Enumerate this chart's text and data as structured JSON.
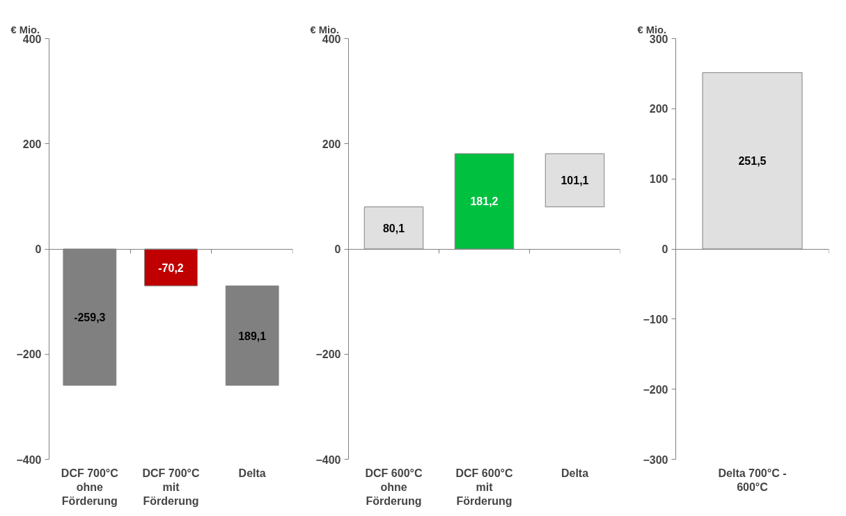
{
  "chart_data": [
    {
      "type": "bar",
      "ylabel": "€ Mio.",
      "categories": [
        "DCF 700°C\nohne\nFörderung",
        "DCF 700°C\nmit\nFörderung",
        "Delta"
      ],
      "values": [
        -259.3,
        -70.2,
        189.1
      ],
      "base": [
        0,
        0,
        -259.3
      ],
      "colors": [
        "#808080",
        "#c00000",
        "#808080"
      ],
      "value_labels": [
        "-259,3",
        "-70,2",
        "189,1"
      ],
      "ylim": [
        -400,
        400
      ],
      "yticks": [
        -400,
        -200,
        0,
        200,
        400
      ]
    },
    {
      "type": "bar",
      "ylabel": "€ Mio.",
      "categories": [
        "DCF 600°C\nohne\nFörderung",
        "DCF 600°C\nmit\nFörderung",
        "Delta"
      ],
      "values": [
        80.1,
        181.2,
        101.1
      ],
      "base": [
        0,
        0,
        80.1
      ],
      "colors": [
        "#e0e0e0",
        "#00c040",
        "#e0e0e0"
      ],
      "value_labels": [
        "80,1",
        "181,2",
        "101,1"
      ],
      "ylim": [
        -400,
        400
      ],
      "yticks": [
        -400,
        -200,
        0,
        200,
        400
      ]
    },
    {
      "type": "bar",
      "ylabel": "€ Mio.",
      "categories": [
        "Delta 700°C -\n600°C"
      ],
      "values": [
        251.5
      ],
      "base": [
        0
      ],
      "colors": [
        "#e0e0e0"
      ],
      "value_labels": [
        "251,5"
      ],
      "ylim": [
        -300,
        300
      ],
      "yticks": [
        -300,
        -200,
        -100,
        0,
        100,
        200,
        300
      ]
    }
  ]
}
